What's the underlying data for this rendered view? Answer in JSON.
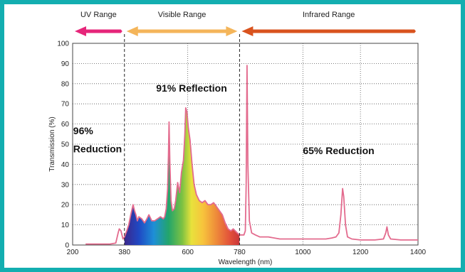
{
  "chart_data": {
    "type": "area",
    "title": "",
    "xlabel": "Wavelength (nm)",
    "ylabel": "Transmission (%)",
    "xlim": [
      200,
      1400
    ],
    "ylim": [
      0,
      100
    ],
    "x_ticks": [
      200,
      380,
      600,
      780,
      1000,
      1200,
      1400
    ],
    "y_ticks": [
      0,
      10,
      20,
      30,
      40,
      50,
      60,
      70,
      80,
      90,
      100
    ],
    "grid": true,
    "ranges": [
      {
        "label": "UV Range",
        "from": 200,
        "to": 380,
        "color": "#e6267a"
      },
      {
        "label": "Visible Range",
        "from": 380,
        "to": 780,
        "color": "#f4b55a"
      },
      {
        "label": "Infrared Range",
        "from": 780,
        "to": 1400,
        "color": "#d9531e"
      }
    ],
    "range_dividers": [
      380,
      780
    ],
    "annotations": [
      {
        "text": "91% Reflection",
        "x": 490,
        "y": 76
      },
      {
        "text": "96%",
        "x": 202,
        "y": 55
      },
      {
        "text": "Reduction",
        "x": 202,
        "y": 46
      },
      {
        "text": "65% Reduction",
        "x": 1000,
        "y": 45
      }
    ],
    "series": [
      {
        "line_color": "#e36b8e",
        "points": [
          [
            245,
            0.5
          ],
          [
            330,
            0.5
          ],
          [
            350,
            1
          ],
          [
            358,
            6
          ],
          [
            362,
            8
          ],
          [
            368,
            7
          ],
          [
            375,
            3
          ],
          [
            380,
            4
          ],
          [
            388,
            7
          ],
          [
            395,
            10
          ],
          [
            402,
            15
          ],
          [
            410,
            20
          ],
          [
            415,
            17
          ],
          [
            420,
            15
          ],
          [
            425,
            12
          ],
          [
            430,
            14
          ],
          [
            440,
            13
          ],
          [
            450,
            11
          ],
          [
            458,
            13
          ],
          [
            465,
            15
          ],
          [
            475,
            12
          ],
          [
            485,
            12
          ],
          [
            495,
            13
          ],
          [
            505,
            14
          ],
          [
            515,
            13
          ],
          [
            520,
            14
          ],
          [
            525,
            18
          ],
          [
            530,
            28
          ],
          [
            533,
            45
          ],
          [
            535,
            61
          ],
          [
            538,
            40
          ],
          [
            542,
            22
          ],
          [
            547,
            17
          ],
          [
            553,
            18
          ],
          [
            558,
            22
          ],
          [
            565,
            31
          ],
          [
            572,
            26
          ],
          [
            578,
            36
          ],
          [
            585,
            42
          ],
          [
            590,
            55
          ],
          [
            593,
            68
          ],
          [
            597,
            66
          ],
          [
            602,
            58
          ],
          [
            608,
            52
          ],
          [
            615,
            40
          ],
          [
            622,
            30
          ],
          [
            630,
            25
          ],
          [
            640,
            22
          ],
          [
            650,
            21
          ],
          [
            660,
            22
          ],
          [
            670,
            20
          ],
          [
            680,
            20
          ],
          [
            690,
            21
          ],
          [
            700,
            19
          ],
          [
            710,
            17
          ],
          [
            720,
            15
          ],
          [
            730,
            11
          ],
          [
            740,
            8
          ],
          [
            750,
            7
          ],
          [
            758,
            8
          ],
          [
            765,
            7
          ],
          [
            772,
            6
          ],
          [
            780,
            5
          ],
          [
            787,
            5
          ],
          [
            795,
            5
          ],
          [
            800,
            7
          ],
          [
            803,
            30
          ],
          [
            806,
            89
          ],
          [
            809,
            40
          ],
          [
            814,
            12
          ],
          [
            822,
            6
          ],
          [
            835,
            5
          ],
          [
            850,
            4
          ],
          [
            880,
            4
          ],
          [
            920,
            3
          ],
          [
            960,
            3
          ],
          [
            1000,
            3
          ],
          [
            1040,
            3
          ],
          [
            1080,
            3
          ],
          [
            1100,
            3.5
          ],
          [
            1115,
            4
          ],
          [
            1125,
            6
          ],
          [
            1132,
            15
          ],
          [
            1138,
            28
          ],
          [
            1142,
            24
          ],
          [
            1148,
            10
          ],
          [
            1155,
            4
          ],
          [
            1170,
            3
          ],
          [
            1200,
            2.5
          ],
          [
            1250,
            2.5
          ],
          [
            1280,
            3
          ],
          [
            1288,
            6
          ],
          [
            1292,
            9
          ],
          [
            1297,
            5
          ],
          [
            1305,
            3
          ],
          [
            1340,
            2.5
          ],
          [
            1370,
            2.5
          ],
          [
            1400,
            2.5
          ]
        ]
      }
    ]
  }
}
